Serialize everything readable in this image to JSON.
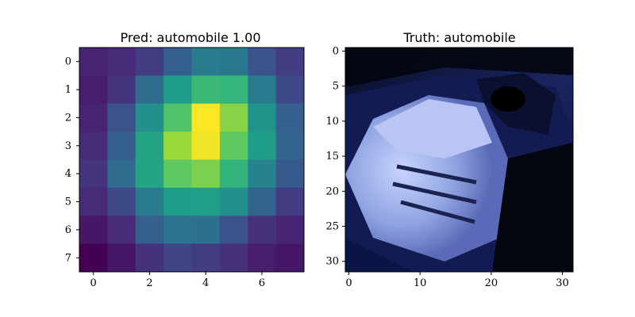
{
  "chart_data": [
    {
      "type": "heatmap",
      "title": "Pred: automobile 1.00",
      "colormap": "viridis",
      "rows": 8,
      "cols": 8,
      "xticks": [
        0,
        2,
        4,
        6
      ],
      "yticks": [
        0,
        1,
        2,
        3,
        4,
        5,
        6,
        7
      ],
      "grid": false,
      "values": [
        [
          0.1,
          0.12,
          0.18,
          0.3,
          0.42,
          0.4,
          0.25,
          0.18
        ],
        [
          0.08,
          0.15,
          0.35,
          0.55,
          0.68,
          0.66,
          0.42,
          0.22
        ],
        [
          0.1,
          0.25,
          0.5,
          0.72,
          1.0,
          0.82,
          0.52,
          0.3
        ],
        [
          0.12,
          0.3,
          0.58,
          0.85,
          0.98,
          0.75,
          0.55,
          0.32
        ],
        [
          0.15,
          0.35,
          0.58,
          0.75,
          0.8,
          0.65,
          0.45,
          0.28
        ],
        [
          0.12,
          0.22,
          0.42,
          0.55,
          0.56,
          0.5,
          0.32,
          0.18
        ],
        [
          0.06,
          0.12,
          0.3,
          0.38,
          0.36,
          0.25,
          0.14,
          0.1
        ],
        [
          0.0,
          0.06,
          0.14,
          0.2,
          0.18,
          0.14,
          0.08,
          0.06
        ]
      ]
    },
    {
      "type": "image",
      "title": "Truth: automobile",
      "xticks": [
        0,
        10,
        20,
        30
      ],
      "yticks": [
        0,
        5,
        10,
        15,
        20,
        25,
        30
      ],
      "xlim": [
        -0.5,
        31.5
      ],
      "ylim": [
        31.5,
        -0.5
      ]
    }
  ]
}
